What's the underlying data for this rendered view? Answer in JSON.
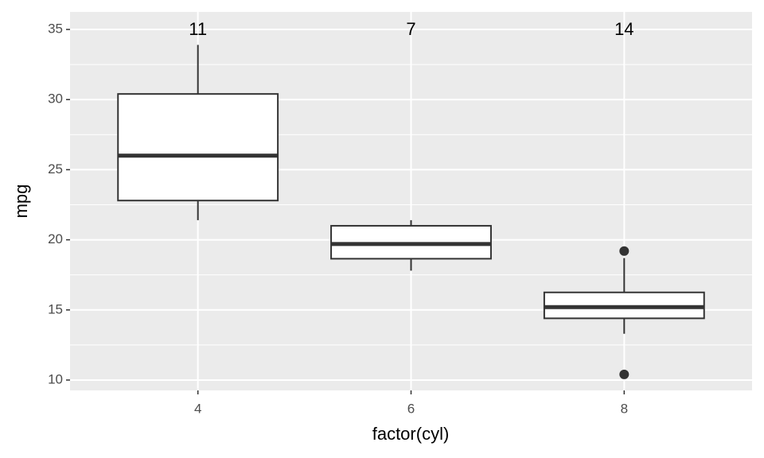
{
  "chart_data": {
    "type": "box",
    "x_label": "factor(cyl)",
    "y_label": "mpg",
    "categories": [
      "4",
      "6",
      "8"
    ],
    "counts": [
      11,
      7,
      14
    ],
    "boxes": [
      {
        "min": 21.4,
        "q1": 22.8,
        "median": 26.0,
        "q3": 30.4,
        "max": 33.9,
        "outliers": []
      },
      {
        "min": 17.8,
        "q1": 18.65,
        "median": 19.7,
        "q3": 21.0,
        "max": 21.4,
        "outliers": []
      },
      {
        "min": 13.3,
        "q1": 14.4,
        "median": 15.2,
        "q3": 16.25,
        "max": 18.7,
        "outliers": [
          10.4,
          19.2
        ]
      }
    ],
    "ylim": [
      9.26,
      36.25
    ],
    "yticks": [
      10,
      15,
      20,
      25,
      30,
      35
    ],
    "minor_yticks": [
      12.5,
      17.5,
      22.5,
      27.5,
      32.5
    ],
    "grid": true,
    "panel_color": "#ebebeb",
    "box_color": "#333333",
    "box_fill": "#ffffff"
  }
}
